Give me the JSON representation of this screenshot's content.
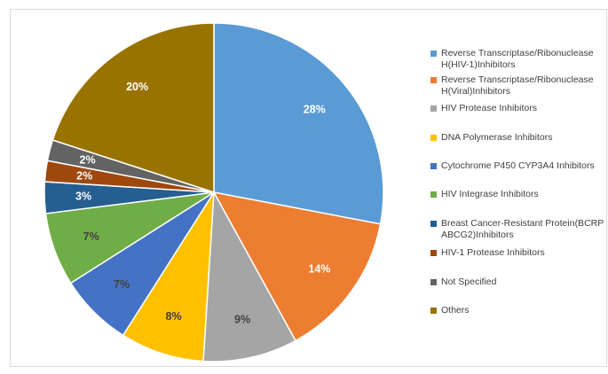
{
  "chart_data": {
    "type": "pie",
    "title": "",
    "legend_position": "right",
    "start_angle_deg": 0,
    "direction": "clockwise",
    "slices": [
      {
        "name": "Reverse Transcriptase/Ribonuclease H(HIV-1)Inhibitors",
        "legend_lines": [
          "Reverse Transcriptase/Ribonuclease",
          "H(HIV-1)Inhibitors"
        ],
        "value": 28,
        "label": "28%",
        "color": "#5b9bd5",
        "label_color": "#ffffff"
      },
      {
        "name": "Reverse Transcriptase/Ribonuclease H(Viral)Inhibitors",
        "legend_lines": [
          "Reverse Transcriptase/Ribonuclease",
          "H(Viral)Inhibitors"
        ],
        "value": 14,
        "label": "14%",
        "color": "#ed7d31",
        "label_color": "#ffffff"
      },
      {
        "name": "HIV Protease Inhibitors",
        "legend_lines": [
          "HIV Protease Inhibitors"
        ],
        "value": 9,
        "label": "9%",
        "color": "#a5a5a5",
        "label_color": "#404040"
      },
      {
        "name": "DNA Polymerase Inhibitors",
        "legend_lines": [
          "DNA Polymerase Inhibitors"
        ],
        "value": 8,
        "label": "8%",
        "color": "#ffc000",
        "label_color": "#404040"
      },
      {
        "name": "Cytochrome P450 CYP3A4 Inhibitors",
        "legend_lines": [
          "Cytochrome P450 CYP3A4 Inhibitors"
        ],
        "value": 7,
        "label": "7%",
        "color": "#4472c4",
        "label_color": "#404040"
      },
      {
        "name": "HIV Integrase Inhibitors",
        "legend_lines": [
          "HIV Integrase Inhibitors"
        ],
        "value": 7,
        "label": "7%",
        "color": "#70ad47",
        "label_color": "#404040"
      },
      {
        "name": "Breast Cancer-Resistant Protein(BCRP ABCG2)Inhibitors",
        "legend_lines": [
          "Breast Cancer-Resistant Protein(BCRP",
          "ABCG2)Inhibitors"
        ],
        "value": 3,
        "label": "3%",
        "color": "#255e91",
        "label_color": "#ffffff"
      },
      {
        "name": "HIV-1 Protease Inhibitors",
        "legend_lines": [
          "HIV-1 Protease Inhibitors"
        ],
        "value": 2,
        "label": "2%",
        "color": "#9e480e",
        "label_color": "#ffffff"
      },
      {
        "name": "Not Specified",
        "legend_lines": [
          "Not Specified"
        ],
        "value": 2,
        "label": "2%",
        "color": "#636363",
        "label_color": "#ffffff"
      },
      {
        "name": "Others",
        "legend_lines": [
          "Others"
        ],
        "value": 20,
        "label": "20%",
        "color": "#997300",
        "label_color": "#ffffff"
      }
    ]
  }
}
